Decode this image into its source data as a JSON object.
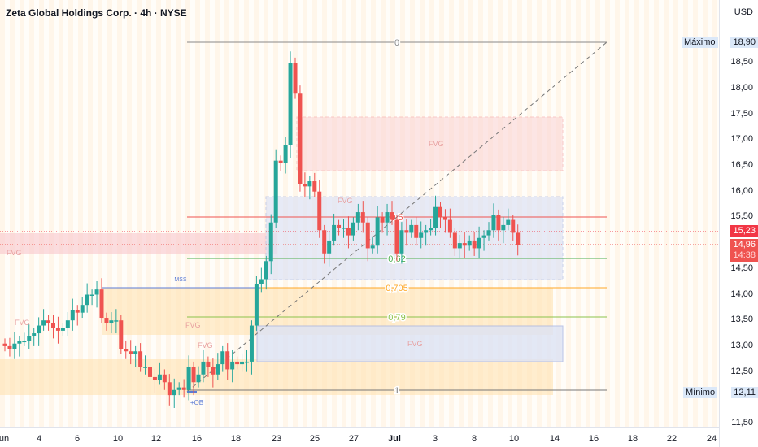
{
  "header": {
    "title": "Zeta Global Holdings Corp. · 4h · NYSE"
  },
  "price_axis": {
    "currency": "USD",
    "ticks": [
      "18,50",
      "18,00",
      "17,50",
      "17,00",
      "16,50",
      "16,00",
      "15,50",
      "14,50",
      "14,00",
      "13,50",
      "13,00",
      "12,50",
      "11,50"
    ],
    "max_label": "Máximo",
    "max_value": "18,90",
    "min_label": "Mínimo",
    "min_value": "12,11",
    "last_high": "15,23",
    "last_price": "14,96",
    "countdown": "14:38"
  },
  "time_axis": [
    "un",
    "4",
    "6",
    "10",
    "12",
    "16",
    "18",
    "23",
    "25",
    "27",
    "Jul",
    "3",
    "8",
    "10",
    "14",
    "16",
    "18",
    "22",
    "24"
  ],
  "annotations": {
    "fib": [
      "0",
      "0,5",
      "0,62",
      "0,705",
      "0,79",
      "1"
    ],
    "fvg": "FVG",
    "mss": "MSS",
    "ob": "+OB"
  },
  "colors": {
    "up": "#26a69a",
    "down": "#ef5350"
  },
  "chart_data": {
    "type": "candlestick",
    "interval": "4h",
    "ylim": [
      11.5,
      19.0
    ],
    "closes": [
      13.0,
      12.95,
      13.05,
      13.1,
      13.1,
      13.2,
      13.25,
      13.4,
      13.5,
      13.45,
      13.35,
      13.3,
      13.35,
      13.5,
      13.7,
      13.65,
      13.8,
      14.0,
      14.0,
      14.1,
      13.55,
      13.45,
      13.5,
      13.5,
      12.95,
      12.9,
      12.85,
      12.9,
      12.6,
      12.6,
      12.4,
      12.35,
      12.45,
      12.3,
      12.05,
      12.15,
      12.2,
      12.15,
      12.6,
      12.3,
      12.45,
      12.7,
      12.6,
      12.45,
      12.65,
      12.9,
      12.55,
      12.7,
      12.65,
      12.7,
      12.7,
      13.4,
      14.2,
      14.3,
      14.65,
      15.4,
      16.6,
      16.55,
      16.9,
      18.5,
      17.9,
      16.15,
      16.1,
      16.2,
      16.0,
      15.25,
      14.8,
      15.05,
      15.35,
      15.3,
      15.3,
      15.15,
      15.4,
      15.6,
      15.4,
      14.9,
      14.95,
      15.5,
      15.4,
      15.6,
      15.45,
      14.8,
      15.25,
      15.2,
      15.35,
      15.1,
      15.2,
      15.25,
      15.3,
      15.7,
      15.5,
      15.45,
      15.2,
      14.9,
      15.0,
      14.95,
      15.05,
      14.9,
      15.1,
      15.15,
      15.25,
      15.55,
      15.25,
      15.35,
      15.45,
      15.2,
      14.96
    ],
    "fib_levels": {
      "0": 18.9,
      "0.5": 15.5,
      "0.62": 14.68,
      "0.705": 14.13,
      "0.79": 13.55,
      "1": 12.11
    }
  }
}
